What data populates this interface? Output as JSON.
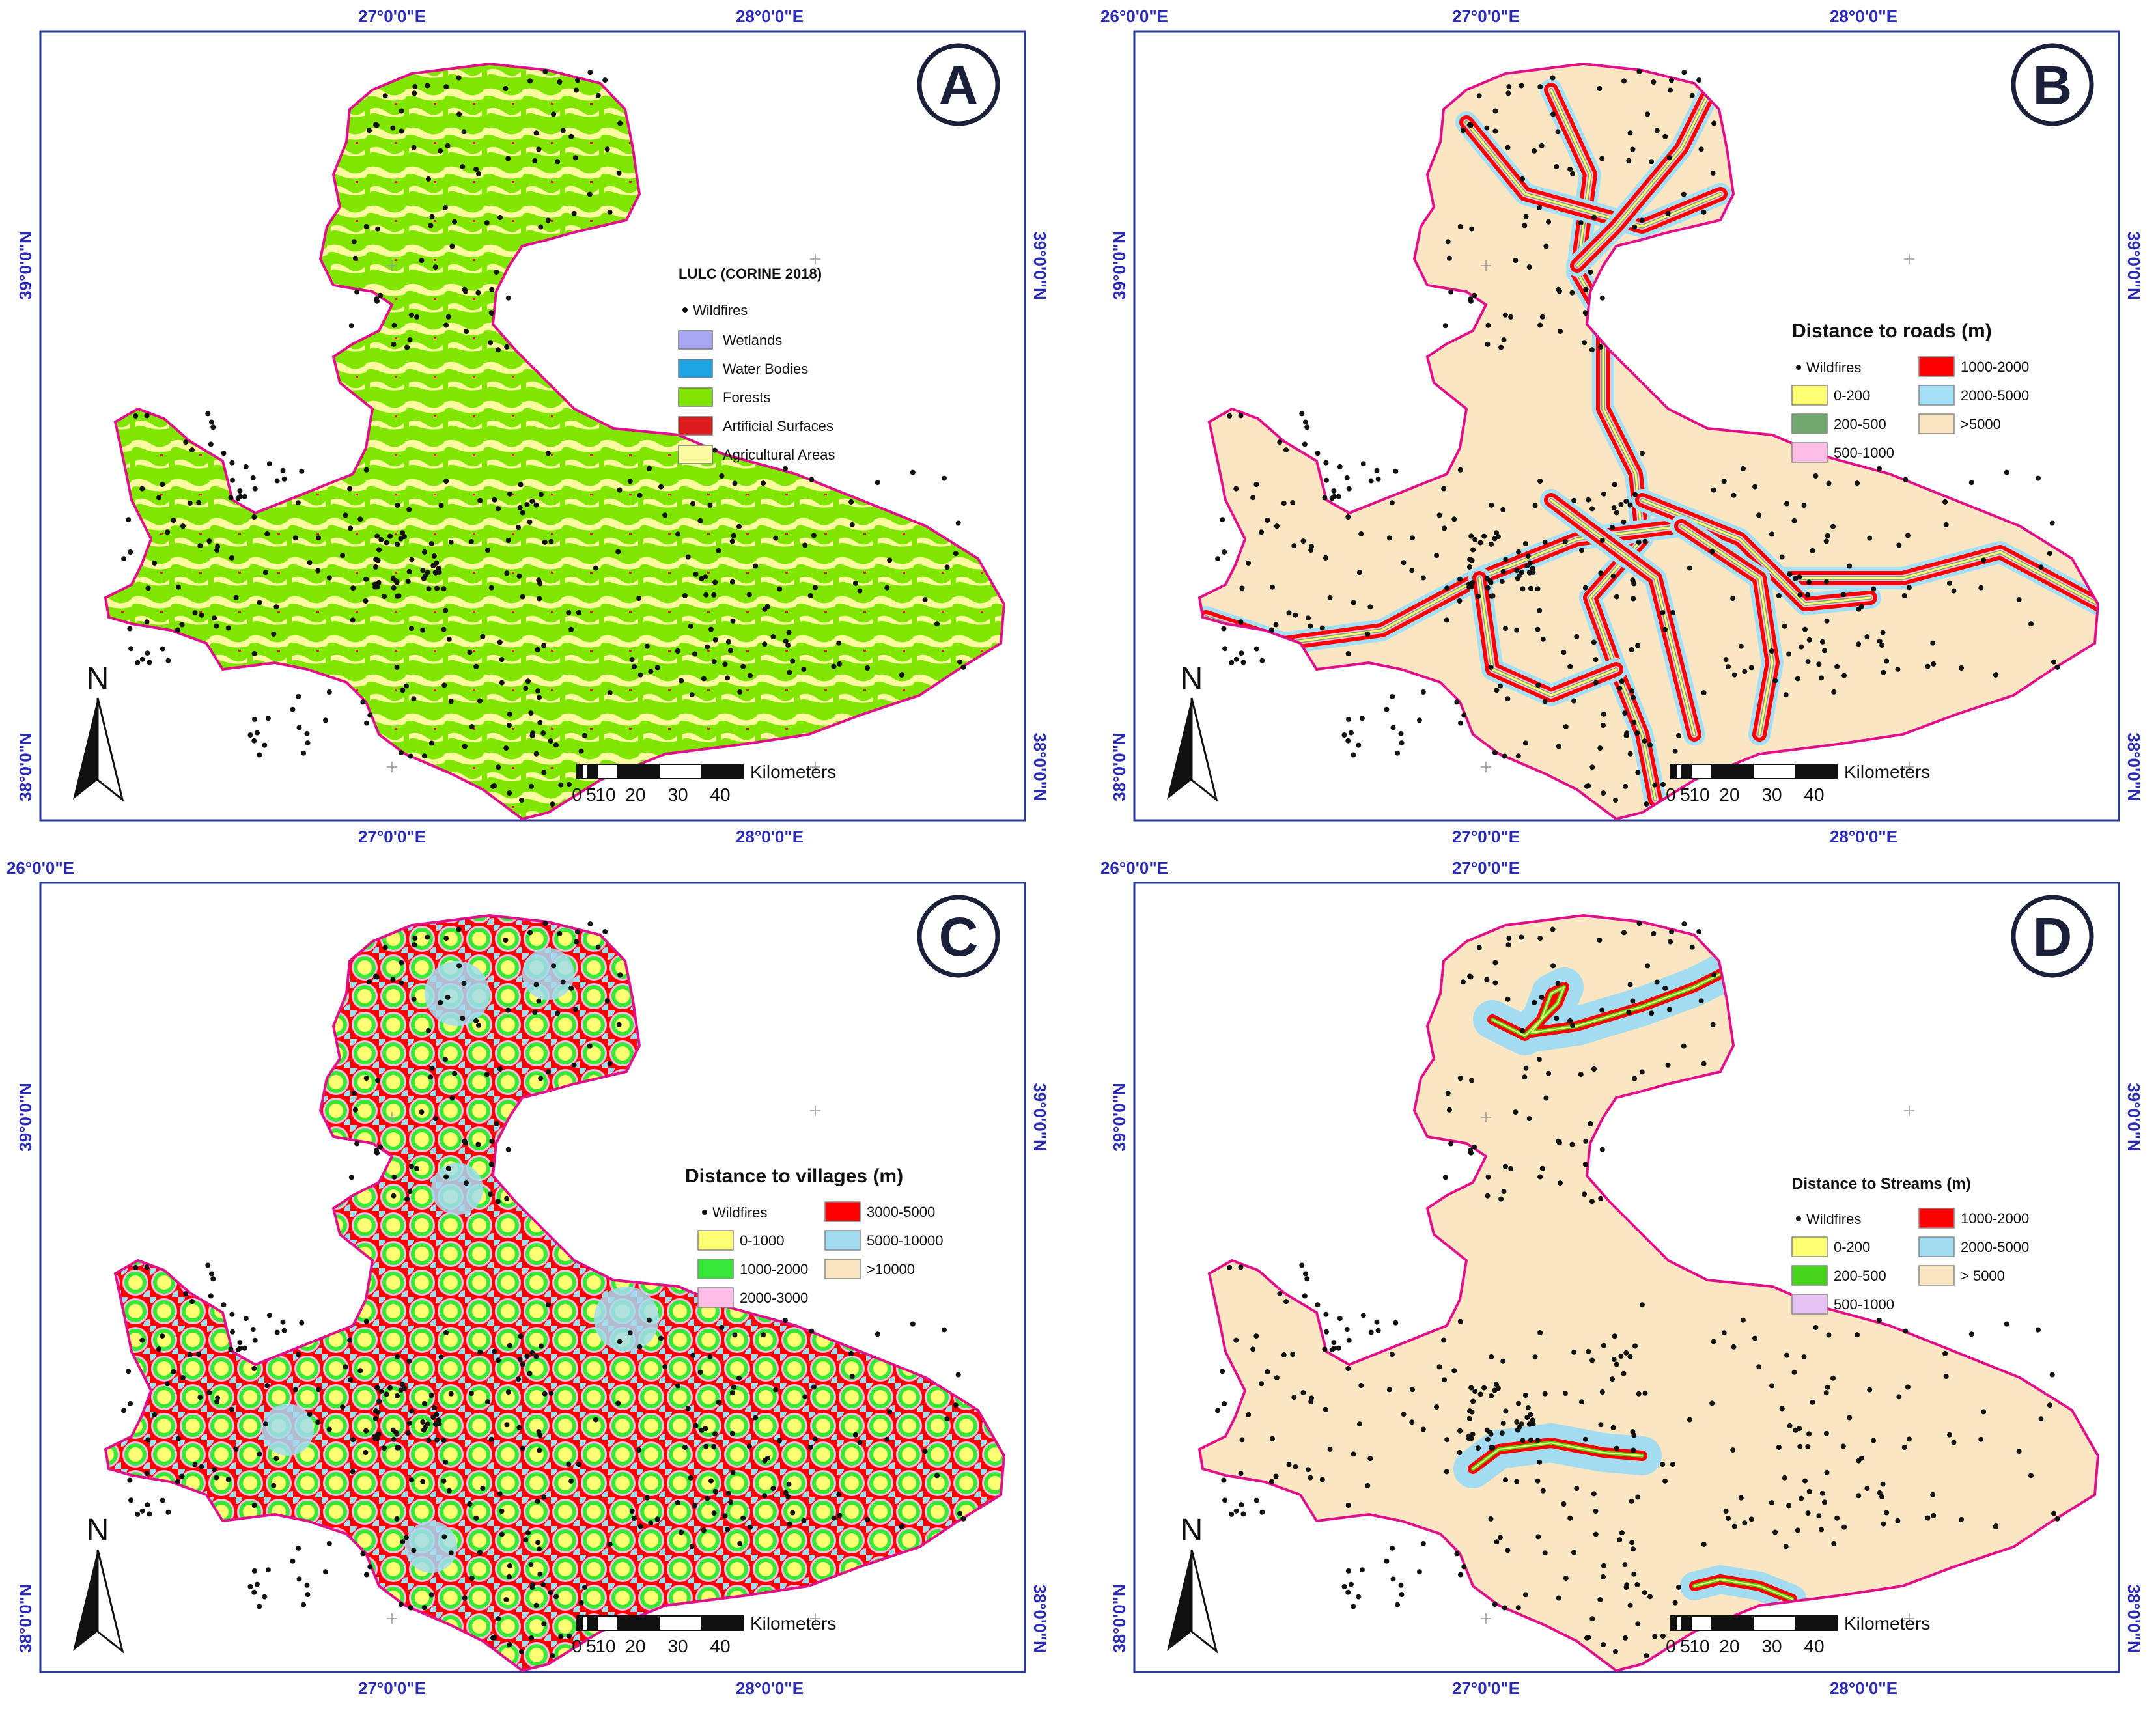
{
  "panels": [
    {
      "id": "A",
      "letter": "A",
      "legend_title": "LULC (CORINE 2018)",
      "wildfire_label": "Wildfires",
      "classes": [
        {
          "label": "Wetlands",
          "color": "#a7a7f2"
        },
        {
          "label": "Water Bodies",
          "color": "#1ea3e3"
        },
        {
          "label": "Forests",
          "color": "#7fe600"
        },
        {
          "label": "Artificial Surfaces",
          "color": "#dc1c1c"
        },
        {
          "label": "Agricultural Areas",
          "color": "#fafaa0"
        }
      ],
      "top_lon_labels": [
        "27°0'0\"E",
        "28°0'0\"E"
      ],
      "bottom_lon_labels": [
        "27°0'0\"E",
        "28°0'0\"E"
      ],
      "left_lat_labels": [
        "39°0'0\"N",
        "38°0'0\"N"
      ],
      "right_lat_labels": [
        "39°0'0\"N",
        "38°0'0\"N"
      ],
      "base_color": "#7fe600"
    },
    {
      "id": "B",
      "letter": "B",
      "legend_title": "Distance to roads (m)",
      "wildfire_label": "Wildfires",
      "classes": [
        {
          "label": "0-200",
          "color": "#ffff73"
        },
        {
          "label": "200-500",
          "color": "#70a870"
        },
        {
          "label": "500-1000",
          "color": "#ffbee8"
        },
        {
          "label": "1000-2000",
          "color": "#ff0000"
        },
        {
          "label": "2000-5000",
          "color": "#a3e0f5"
        },
        {
          "label": ">5000",
          "color": "#fae6c3"
        }
      ],
      "top_lon_labels": [
        "26°0'0\"E",
        "27°0'0\"E",
        "28°0'0\"E"
      ],
      "bottom_lon_labels": [
        "27°0'0\"E",
        "28°0'0\"E"
      ],
      "left_lat_labels": [
        "39°0'0\"N",
        "38°0'0\"N"
      ],
      "right_lat_labels": [
        "39°0'0\"N",
        "38°0'0\"N"
      ],
      "base_color": "#fae6c3"
    },
    {
      "id": "C",
      "letter": "C",
      "legend_title": "Distance to villages (m)",
      "wildfire_label": "Wildfires",
      "classes": [
        {
          "label": "0-1000",
          "color": "#ffff73"
        },
        {
          "label": "1000-2000",
          "color": "#38e838"
        },
        {
          "label": "2000-3000",
          "color": "#ffbee8"
        },
        {
          "label": "3000-5000",
          "color": "#ff0000"
        },
        {
          "label": "5000-10000",
          "color": "#a3dcf0"
        },
        {
          "label": ">10000",
          "color": "#fae6c3"
        }
      ],
      "top_lon_labels": [
        "26°0'0\"E"
      ],
      "bottom_lon_labels": [
        "27°0'0\"E",
        "28°0'0\"E"
      ],
      "left_lat_labels": [
        "39°0'0\"N",
        "38°0'0\"N"
      ],
      "right_lat_labels": [
        "39°0'0\"N",
        "38°0'0\"N"
      ],
      "base_color": "#a3dcf0"
    },
    {
      "id": "D",
      "letter": "D",
      "legend_title": "Distance to Streams (m)",
      "wildfire_label": "Wildfires",
      "classes": [
        {
          "label": "0-200",
          "color": "#ffff73"
        },
        {
          "label": "200-500",
          "color": "#47d41a"
        },
        {
          "label": "500-1000",
          "color": "#e6c3f5"
        },
        {
          "label": "1000-2000",
          "color": "#ff0000"
        },
        {
          "label": "2000-5000",
          "color": "#a3dcf0"
        },
        {
          "label": "> 5000",
          "color": "#fae6c3"
        }
      ],
      "top_lon_labels": [
        "26°0'0\"E",
        "27°0'0\"E"
      ],
      "bottom_lon_labels": [
        "27°0'0\"E",
        "28°0'0\"E"
      ],
      "left_lat_labels": [
        "39°0'0\"N",
        "38°0'0\"N"
      ],
      "right_lat_labels": [
        "39°0'0\"N",
        "38°0'0\"N"
      ],
      "base_color": "#fae6c3"
    }
  ],
  "scale_bar": {
    "unit": "Kilometers",
    "ticks": [
      "0",
      "5",
      "10",
      "20",
      "30",
      "40"
    ]
  },
  "north_arrow_label": "N",
  "colors": {
    "boundary": "#e0108a",
    "frame": "#2a3a9a",
    "coordinate_text": "#2b2bb5",
    "wildfire": "#111111"
  }
}
